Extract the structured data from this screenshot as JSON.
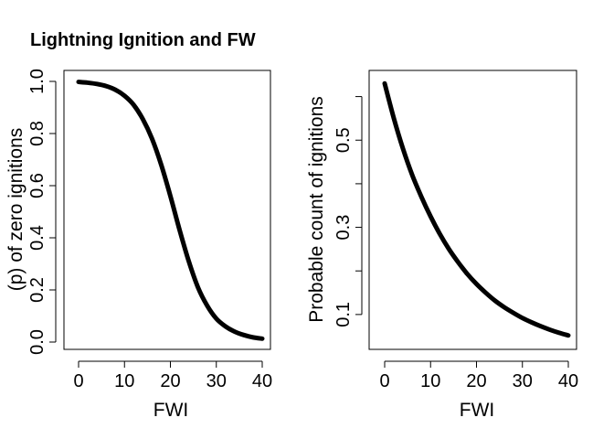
{
  "title": "Lightning Ignition and FW",
  "colors": {
    "curve": "#000000"
  },
  "chart_data": [
    {
      "type": "line",
      "xlabel": "FWI",
      "ylabel": "(p) of zero ignitions",
      "xlim": [
        0,
        40
      ],
      "ylim": [
        0,
        1
      ],
      "xticks": [
        "0",
        "10",
        "20",
        "30",
        "40"
      ],
      "yticks": [
        "0.0",
        "0.2",
        "0.4",
        "0.6",
        "0.8",
        "1.0"
      ],
      "series": [
        {
          "x": [
            0,
            2,
            4,
            6,
            8,
            10,
            12,
            14,
            16,
            18,
            20,
            22,
            24,
            26,
            28,
            30,
            32,
            34,
            36,
            38,
            40
          ],
          "values": [
            0.998,
            0.995,
            0.99,
            0.982,
            0.968,
            0.945,
            0.91,
            0.855,
            0.78,
            0.68,
            0.56,
            0.43,
            0.31,
            0.21,
            0.14,
            0.09,
            0.06,
            0.04,
            0.027,
            0.018,
            0.013
          ]
        }
      ]
    },
    {
      "type": "line",
      "xlabel": "FWI",
      "ylabel": "Probable count of ignitions",
      "xlim": [
        0,
        40
      ],
      "ylim": [
        0.02,
        0.66
      ],
      "xticks": [
        "0",
        "10",
        "20",
        "30",
        "40"
      ],
      "yticks": [
        "0.1",
        "0.3",
        "0.5"
      ],
      "yticks_values": [
        0.1,
        0.2,
        0.3,
        0.4,
        0.5,
        0.6
      ],
      "series": [
        {
          "x": [
            0,
            2,
            4,
            6,
            8,
            10,
            12,
            14,
            16,
            18,
            20,
            22,
            24,
            26,
            28,
            30,
            32,
            34,
            36,
            38,
            40
          ],
          "values": [
            0.63,
            0.55,
            0.48,
            0.42,
            0.37,
            0.325,
            0.285,
            0.25,
            0.22,
            0.193,
            0.17,
            0.15,
            0.132,
            0.117,
            0.104,
            0.092,
            0.082,
            0.073,
            0.065,
            0.058,
            0.052
          ]
        }
      ]
    }
  ]
}
